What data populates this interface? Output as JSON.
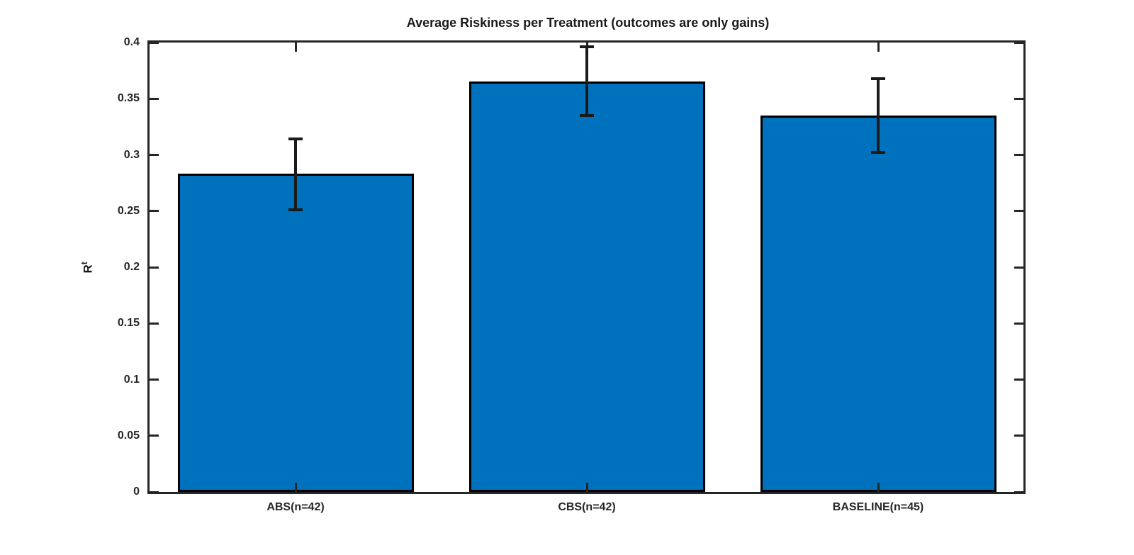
{
  "chart_data": {
    "type": "bar",
    "title": "Average Riskiness per Treatment (outcomes are only gains)",
    "ylabel_base": "R",
    "ylabel_sup": "t",
    "xlabel": "",
    "ylim": [
      0,
      0.4
    ],
    "yticks": [
      0,
      0.05,
      0.1,
      0.15,
      0.2,
      0.25,
      0.3,
      0.35,
      0.4
    ],
    "ytick_labels": [
      "0",
      "0.05",
      "0.1",
      "0.15",
      "0.2",
      "0.25",
      "0.3",
      "0.35",
      "0.4"
    ],
    "categories": [
      "ABS(n=42)",
      "CBS(n=42)",
      "BASELINE(n=45)"
    ],
    "values": [
      0.283,
      0.365,
      0.335
    ],
    "error_low": [
      0.251,
      0.335,
      0.302
    ],
    "error_high": [
      0.314,
      0.396,
      0.368
    ],
    "bar_color": "#0072BD",
    "bar_edge_color": "#000000",
    "error_color": "#1a1a1a",
    "axis_color": "#262626",
    "grid": false,
    "legend_position": "none",
    "box": true,
    "ticks_direction": "in"
  }
}
